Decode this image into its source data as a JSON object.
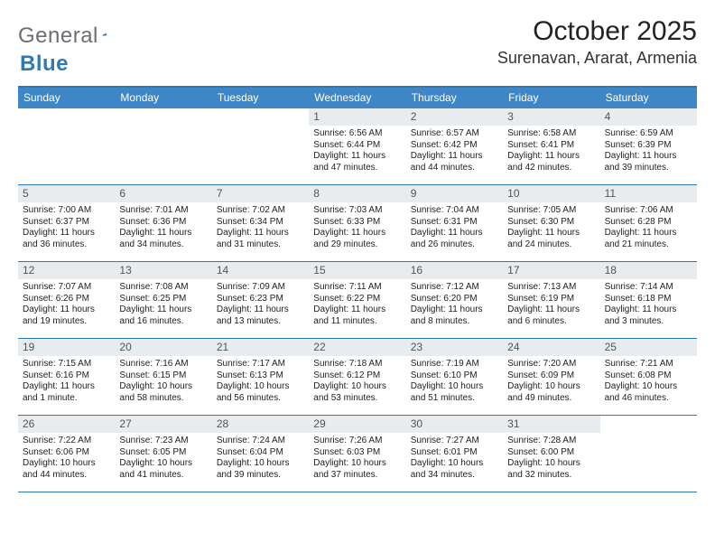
{
  "logo": {
    "part1": "General",
    "part2": "Blue"
  },
  "title": "October 2025",
  "location": "Surenavan, Ararat, Armenia",
  "colors": {
    "header_bg": "#3f86c6",
    "border": "#2f79b5",
    "daynum_bg": "#e8ecef",
    "text": "#222222",
    "logo_gray": "#6b6f73",
    "logo_blue": "#2f79b5",
    "white": "#ffffff"
  },
  "dow": [
    "Sunday",
    "Monday",
    "Tuesday",
    "Wednesday",
    "Thursday",
    "Friday",
    "Saturday"
  ],
  "weeks": [
    [
      null,
      null,
      null,
      {
        "n": "1",
        "rise": "Sunrise: 6:56 AM",
        "set": "Sunset: 6:44 PM",
        "day": "Daylight: 11 hours and 47 minutes."
      },
      {
        "n": "2",
        "rise": "Sunrise: 6:57 AM",
        "set": "Sunset: 6:42 PM",
        "day": "Daylight: 11 hours and 44 minutes."
      },
      {
        "n": "3",
        "rise": "Sunrise: 6:58 AM",
        "set": "Sunset: 6:41 PM",
        "day": "Daylight: 11 hours and 42 minutes."
      },
      {
        "n": "4",
        "rise": "Sunrise: 6:59 AM",
        "set": "Sunset: 6:39 PM",
        "day": "Daylight: 11 hours and 39 minutes."
      }
    ],
    [
      {
        "n": "5",
        "rise": "Sunrise: 7:00 AM",
        "set": "Sunset: 6:37 PM",
        "day": "Daylight: 11 hours and 36 minutes."
      },
      {
        "n": "6",
        "rise": "Sunrise: 7:01 AM",
        "set": "Sunset: 6:36 PM",
        "day": "Daylight: 11 hours and 34 minutes."
      },
      {
        "n": "7",
        "rise": "Sunrise: 7:02 AM",
        "set": "Sunset: 6:34 PM",
        "day": "Daylight: 11 hours and 31 minutes."
      },
      {
        "n": "8",
        "rise": "Sunrise: 7:03 AM",
        "set": "Sunset: 6:33 PM",
        "day": "Daylight: 11 hours and 29 minutes."
      },
      {
        "n": "9",
        "rise": "Sunrise: 7:04 AM",
        "set": "Sunset: 6:31 PM",
        "day": "Daylight: 11 hours and 26 minutes."
      },
      {
        "n": "10",
        "rise": "Sunrise: 7:05 AM",
        "set": "Sunset: 6:30 PM",
        "day": "Daylight: 11 hours and 24 minutes."
      },
      {
        "n": "11",
        "rise": "Sunrise: 7:06 AM",
        "set": "Sunset: 6:28 PM",
        "day": "Daylight: 11 hours and 21 minutes."
      }
    ],
    [
      {
        "n": "12",
        "rise": "Sunrise: 7:07 AM",
        "set": "Sunset: 6:26 PM",
        "day": "Daylight: 11 hours and 19 minutes."
      },
      {
        "n": "13",
        "rise": "Sunrise: 7:08 AM",
        "set": "Sunset: 6:25 PM",
        "day": "Daylight: 11 hours and 16 minutes."
      },
      {
        "n": "14",
        "rise": "Sunrise: 7:09 AM",
        "set": "Sunset: 6:23 PM",
        "day": "Daylight: 11 hours and 13 minutes."
      },
      {
        "n": "15",
        "rise": "Sunrise: 7:11 AM",
        "set": "Sunset: 6:22 PM",
        "day": "Daylight: 11 hours and 11 minutes."
      },
      {
        "n": "16",
        "rise": "Sunrise: 7:12 AM",
        "set": "Sunset: 6:20 PM",
        "day": "Daylight: 11 hours and 8 minutes."
      },
      {
        "n": "17",
        "rise": "Sunrise: 7:13 AM",
        "set": "Sunset: 6:19 PM",
        "day": "Daylight: 11 hours and 6 minutes."
      },
      {
        "n": "18",
        "rise": "Sunrise: 7:14 AM",
        "set": "Sunset: 6:18 PM",
        "day": "Daylight: 11 hours and 3 minutes."
      }
    ],
    [
      {
        "n": "19",
        "rise": "Sunrise: 7:15 AM",
        "set": "Sunset: 6:16 PM",
        "day": "Daylight: 11 hours and 1 minute."
      },
      {
        "n": "20",
        "rise": "Sunrise: 7:16 AM",
        "set": "Sunset: 6:15 PM",
        "day": "Daylight: 10 hours and 58 minutes."
      },
      {
        "n": "21",
        "rise": "Sunrise: 7:17 AM",
        "set": "Sunset: 6:13 PM",
        "day": "Daylight: 10 hours and 56 minutes."
      },
      {
        "n": "22",
        "rise": "Sunrise: 7:18 AM",
        "set": "Sunset: 6:12 PM",
        "day": "Daylight: 10 hours and 53 minutes."
      },
      {
        "n": "23",
        "rise": "Sunrise: 7:19 AM",
        "set": "Sunset: 6:10 PM",
        "day": "Daylight: 10 hours and 51 minutes."
      },
      {
        "n": "24",
        "rise": "Sunrise: 7:20 AM",
        "set": "Sunset: 6:09 PM",
        "day": "Daylight: 10 hours and 49 minutes."
      },
      {
        "n": "25",
        "rise": "Sunrise: 7:21 AM",
        "set": "Sunset: 6:08 PM",
        "day": "Daylight: 10 hours and 46 minutes."
      }
    ],
    [
      {
        "n": "26",
        "rise": "Sunrise: 7:22 AM",
        "set": "Sunset: 6:06 PM",
        "day": "Daylight: 10 hours and 44 minutes."
      },
      {
        "n": "27",
        "rise": "Sunrise: 7:23 AM",
        "set": "Sunset: 6:05 PM",
        "day": "Daylight: 10 hours and 41 minutes."
      },
      {
        "n": "28",
        "rise": "Sunrise: 7:24 AM",
        "set": "Sunset: 6:04 PM",
        "day": "Daylight: 10 hours and 39 minutes."
      },
      {
        "n": "29",
        "rise": "Sunrise: 7:26 AM",
        "set": "Sunset: 6:03 PM",
        "day": "Daylight: 10 hours and 37 minutes."
      },
      {
        "n": "30",
        "rise": "Sunrise: 7:27 AM",
        "set": "Sunset: 6:01 PM",
        "day": "Daylight: 10 hours and 34 minutes."
      },
      {
        "n": "31",
        "rise": "Sunrise: 7:28 AM",
        "set": "Sunset: 6:00 PM",
        "day": "Daylight: 10 hours and 32 minutes."
      },
      null
    ]
  ]
}
